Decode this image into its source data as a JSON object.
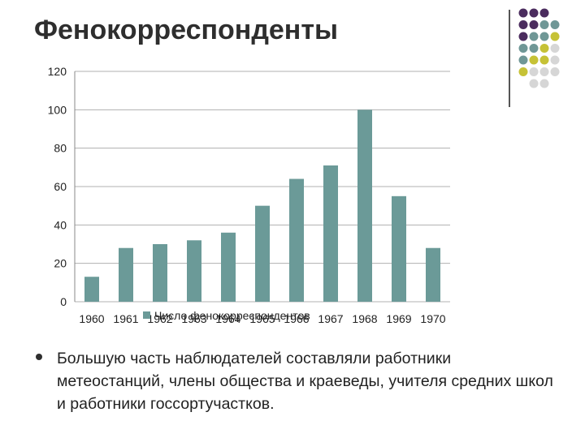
{
  "slide": {
    "title": "Фенокорреспонденты",
    "bullet": "Большую часть наблюдателей составляли работники метеостанций, члены общества и краеведы, учителя средних школ и работники госсортучастков."
  },
  "colors": {
    "bar": "#6b9a98",
    "grid": "#b0b0b0",
    "dot_purple": "#4b2c5e",
    "dot_teal": "#6f9796",
    "dot_olive": "#c6c236",
    "dot_gray": "#d6d6d6"
  },
  "decor": {
    "dot_grid": [
      [
        "purple",
        "purple",
        "purple",
        "none"
      ],
      [
        "purple",
        "purple",
        "teal",
        "teal"
      ],
      [
        "purple",
        "teal",
        "teal",
        "olive"
      ],
      [
        "teal",
        "teal",
        "olive",
        "gray"
      ],
      [
        "teal",
        "olive",
        "olive",
        "gray"
      ],
      [
        "olive",
        "gray",
        "gray",
        "gray"
      ],
      [
        "none",
        "gray",
        "gray",
        "none"
      ]
    ]
  },
  "chart_data": {
    "type": "bar",
    "categories": [
      "1960",
      "1961",
      "1962",
      "1963",
      "1964",
      "1965",
      "1966",
      "1967",
      "1968",
      "1969",
      "1970"
    ],
    "series": [
      {
        "name": "Число фенокорреспондентов",
        "values": [
          13,
          28,
          30,
          32,
          36,
          50,
          64,
          71,
          100,
          55,
          28
        ]
      }
    ],
    "ylim": [
      0,
      120
    ],
    "yticks": [
      0,
      20,
      40,
      60,
      80,
      100,
      120
    ],
    "grid": true,
    "legend": "bottom"
  }
}
